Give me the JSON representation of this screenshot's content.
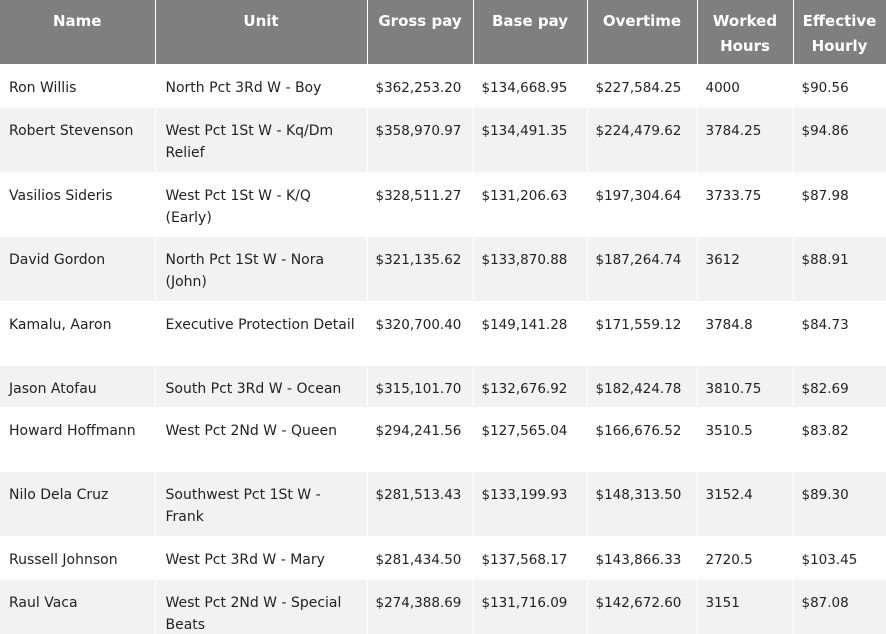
{
  "table": {
    "columns": [
      "Name",
      "Unit",
      "Gross pay",
      "Base pay",
      "Overtime",
      "Worked Hours",
      "Effective Hourly"
    ],
    "rows": [
      [
        "Ron Willis",
        "North Pct 3Rd W - Boy",
        "$362,253.20",
        "$134,668.95",
        "$227,584.25",
        "4000",
        "$90.56"
      ],
      [
        "Robert Stevenson",
        "West Pct 1St W - Kq/Dm Relief",
        "$358,970.97",
        "$134,491.35",
        "$224,479.62",
        "3784.25",
        "$94.86"
      ],
      [
        "Vasilios Sideris",
        "West Pct 1St W - K/Q (Early)",
        "$328,511.27",
        "$131,206.63",
        "$197,304.64",
        "3733.75",
        "$87.98"
      ],
      [
        "David Gordon",
        "North Pct 1St W - Nora (John)",
        "$321,135.62",
        "$133,870.88",
        "$187,264.74",
        "3612",
        "$88.91"
      ],
      [
        "Kamalu, Aaron",
        "Executive Protection Detail",
        "$320,700.40",
        "$149,141.28",
        "$171,559.12",
        "3784.8",
        "$84.73"
      ],
      [
        "Jason Atofau",
        "South Pct 3Rd W - Ocean",
        "$315,101.70",
        "$132,676.92",
        "$182,424.78",
        "3810.75",
        "$82.69"
      ],
      [
        "Howard Hoffmann",
        "West Pct 2Nd W - Queen",
        "$294,241.56",
        "$127,565.04",
        "$166,676.52",
        "3510.5",
        "$83.82"
      ],
      [
        "Nilo Dela Cruz",
        "Southwest Pct 1St W - Frank",
        "$281,513.43",
        "$133,199.93",
        "$148,313.50",
        "3152.4",
        "$89.30"
      ],
      [
        "Russell Johnson",
        "West Pct 3Rd W - Mary",
        "$281,434.50",
        "$137,568.17",
        "$143,866.33",
        "2720.5",
        "$103.45"
      ],
      [
        "Raul Vaca",
        "West Pct 2Nd W - Special Beats",
        "$274,388.69",
        "$131,716.09",
        "$142,672.60",
        "3151",
        "$87.08"
      ]
    ]
  }
}
